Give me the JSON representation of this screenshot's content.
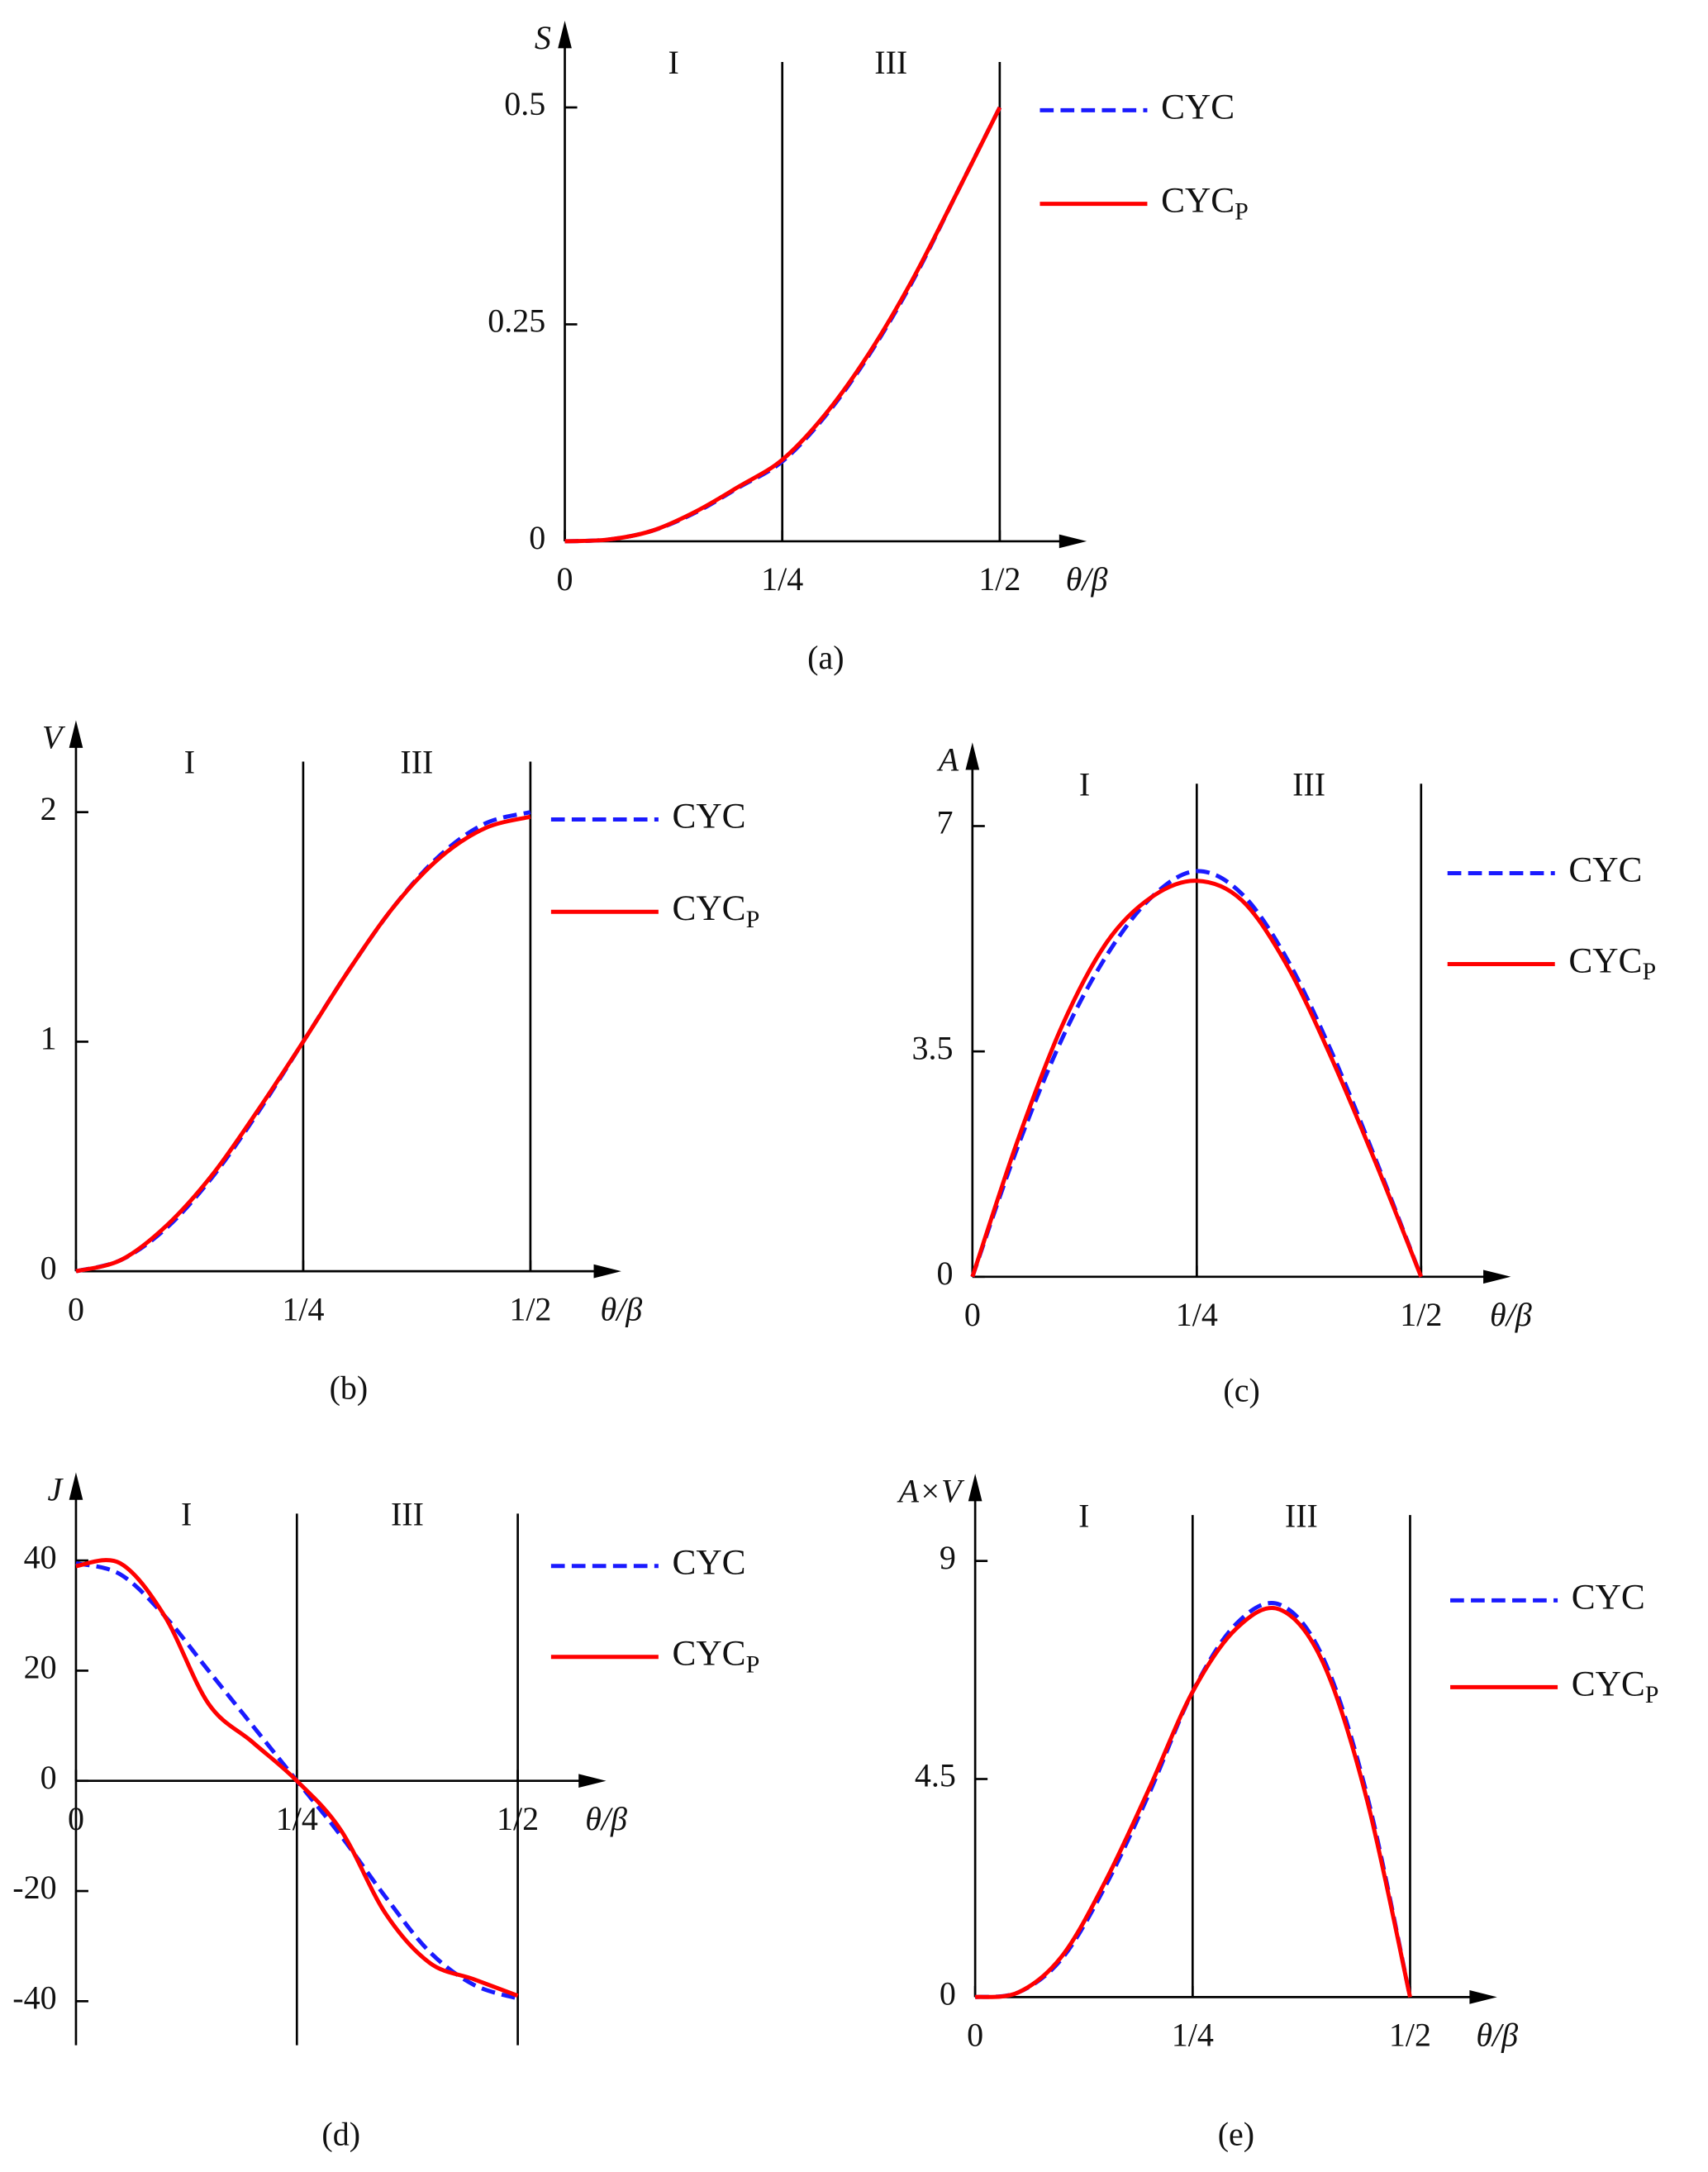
{
  "chart_data": [
    {
      "type": "line",
      "caption": "(a)",
      "y_label": "S",
      "x_label": "θ/β",
      "region_labels": [
        "I",
        "III"
      ],
      "region_boundaries": [
        0.25,
        0.5
      ],
      "xlim": [
        0,
        0.6
      ],
      "ylim": [
        0,
        0.6
      ],
      "xticks": [
        0,
        {
          "value": 0.25,
          "label": "1/4"
        },
        {
          "value": 0.5,
          "label": "1/2"
        }
      ],
      "yticks": [
        0,
        0.25,
        0.5
      ],
      "x": [
        0,
        0.05,
        0.1,
        0.15,
        0.2,
        0.25,
        0.3,
        0.35,
        0.4,
        0.45,
        0.5
      ],
      "series": [
        {
          "name": "CYC",
          "color": "#1a1aff",
          "line_style": "dashed",
          "values": [
            0,
            0.002,
            0.012,
            0.033,
            0.062,
            0.092,
            0.145,
            0.215,
            0.3,
            0.4,
            0.5
          ]
        },
        {
          "name": "CYC",
          "subscript": "P",
          "color": "#ff0000",
          "line_style": "solid",
          "values": [
            0,
            0.002,
            0.012,
            0.034,
            0.063,
            0.094,
            0.147,
            0.217,
            0.302,
            0.4,
            0.5
          ]
        }
      ]
    },
    {
      "type": "line",
      "caption": "(b)",
      "y_label": "V",
      "x_label": "θ/β",
      "region_labels": [
        "I",
        "III"
      ],
      "region_boundaries": [
        0.25,
        0.5
      ],
      "xlim": [
        0,
        0.6
      ],
      "ylim": [
        0,
        2.4
      ],
      "xticks": [
        0,
        {
          "value": 0.25,
          "label": "1/4"
        },
        {
          "value": 0.5,
          "label": "1/2"
        }
      ],
      "yticks": [
        0,
        1,
        2
      ],
      "x": [
        0,
        0.05,
        0.1,
        0.15,
        0.2,
        0.25,
        0.3,
        0.35,
        0.4,
        0.45,
        0.5
      ],
      "series": [
        {
          "name": "CYC",
          "color": "#1a1aff",
          "line_style": "dashed",
          "values": [
            0,
            0.05,
            0.19,
            0.41,
            0.69,
            1.0,
            1.31,
            1.59,
            1.81,
            1.95,
            2.0
          ]
        },
        {
          "name": "CYC",
          "subscript": "P",
          "color": "#ff0000",
          "line_style": "solid",
          "values": [
            0,
            0.05,
            0.2,
            0.42,
            0.7,
            1.0,
            1.31,
            1.59,
            1.8,
            1.93,
            1.98
          ]
        }
      ]
    },
    {
      "type": "line",
      "caption": "(c)",
      "y_label": "A",
      "x_label": "θ/β",
      "region_labels": [
        "I",
        "III"
      ],
      "region_boundaries": [
        0.25,
        0.5
      ],
      "xlim": [
        0,
        0.6
      ],
      "ylim": [
        0,
        8.3
      ],
      "xticks": [
        0,
        {
          "value": 0.25,
          "label": "1/4"
        },
        {
          "value": 0.5,
          "label": "1/2"
        }
      ],
      "yticks": [
        0,
        3.5,
        7
      ],
      "x": [
        0,
        0.05,
        0.1,
        0.15,
        0.2,
        0.25,
        0.3,
        0.35,
        0.4,
        0.45,
        0.5
      ],
      "series": [
        {
          "name": "CYC",
          "color": "#1a1aff",
          "line_style": "dashed",
          "values": [
            0,
            2.0,
            3.7,
            5.0,
            5.9,
            6.3,
            5.95,
            4.95,
            3.5,
            1.8,
            0
          ]
        },
        {
          "name": "CYC",
          "subscript": "P",
          "color": "#ff0000",
          "line_style": "solid",
          "values": [
            0,
            2.1,
            3.9,
            5.2,
            5.9,
            6.15,
            5.85,
            4.85,
            3.4,
            1.75,
            0
          ]
        }
      ]
    },
    {
      "type": "line",
      "caption": "(d)",
      "y_label": "J",
      "x_label": "θ/β",
      "region_labels": [
        "I",
        "III"
      ],
      "region_boundaries": [
        0.25,
        0.5
      ],
      "xlim": [
        0,
        0.6
      ],
      "ylim": [
        -48,
        56
      ],
      "xticks": [
        0,
        {
          "value": 0.25,
          "label": "1/4"
        },
        {
          "value": 0.5,
          "label": "1/2"
        }
      ],
      "yticks": [
        -40,
        -20,
        0,
        20,
        40
      ],
      "x": [
        0,
        0.05,
        0.1,
        0.15,
        0.2,
        0.25,
        0.3,
        0.35,
        0.4,
        0.45,
        0.5
      ],
      "series": [
        {
          "name": "CYC",
          "color": "#1a1aff",
          "line_style": "dashed",
          "values": [
            39.5,
            37.5,
            30,
            20,
            10,
            0,
            -10,
            -21,
            -31,
            -37,
            -39.5
          ]
        },
        {
          "name": "CYC",
          "subscript": "P",
          "color": "#ff0000",
          "line_style": "solid",
          "values": [
            39,
            39.5,
            30,
            14,
            7,
            0,
            -9,
            -24,
            -33,
            -36,
            -39
          ]
        }
      ]
    },
    {
      "type": "line",
      "caption": "(e)",
      "y_label": "A×V",
      "x_label": "θ/β",
      "region_labels": [
        "I",
        "III"
      ],
      "region_boundaries": [
        0.25,
        0.5
      ],
      "xlim": [
        0,
        0.6
      ],
      "ylim": [
        0,
        10.8
      ],
      "xticks": [
        0,
        {
          "value": 0.25,
          "label": "1/4"
        },
        {
          "value": 0.5,
          "label": "1/2"
        }
      ],
      "yticks": [
        0,
        4.5,
        9
      ],
      "x": [
        0,
        0.05,
        0.1,
        0.15,
        0.2,
        0.25,
        0.3,
        0.35,
        0.4,
        0.45,
        0.5
      ],
      "series": [
        {
          "name": "CYC",
          "color": "#1a1aff",
          "line_style": "dashed",
          "values": [
            0,
            0.1,
            0.8,
            2.3,
            4.2,
            6.3,
            7.7,
            8.1,
            7.0,
            4.2,
            0
          ]
        },
        {
          "name": "CYC",
          "subscript": "P",
          "color": "#ff0000",
          "line_style": "solid",
          "values": [
            0,
            0.1,
            0.85,
            2.4,
            4.3,
            6.3,
            7.6,
            8.0,
            6.9,
            4.1,
            0
          ]
        }
      ]
    }
  ]
}
